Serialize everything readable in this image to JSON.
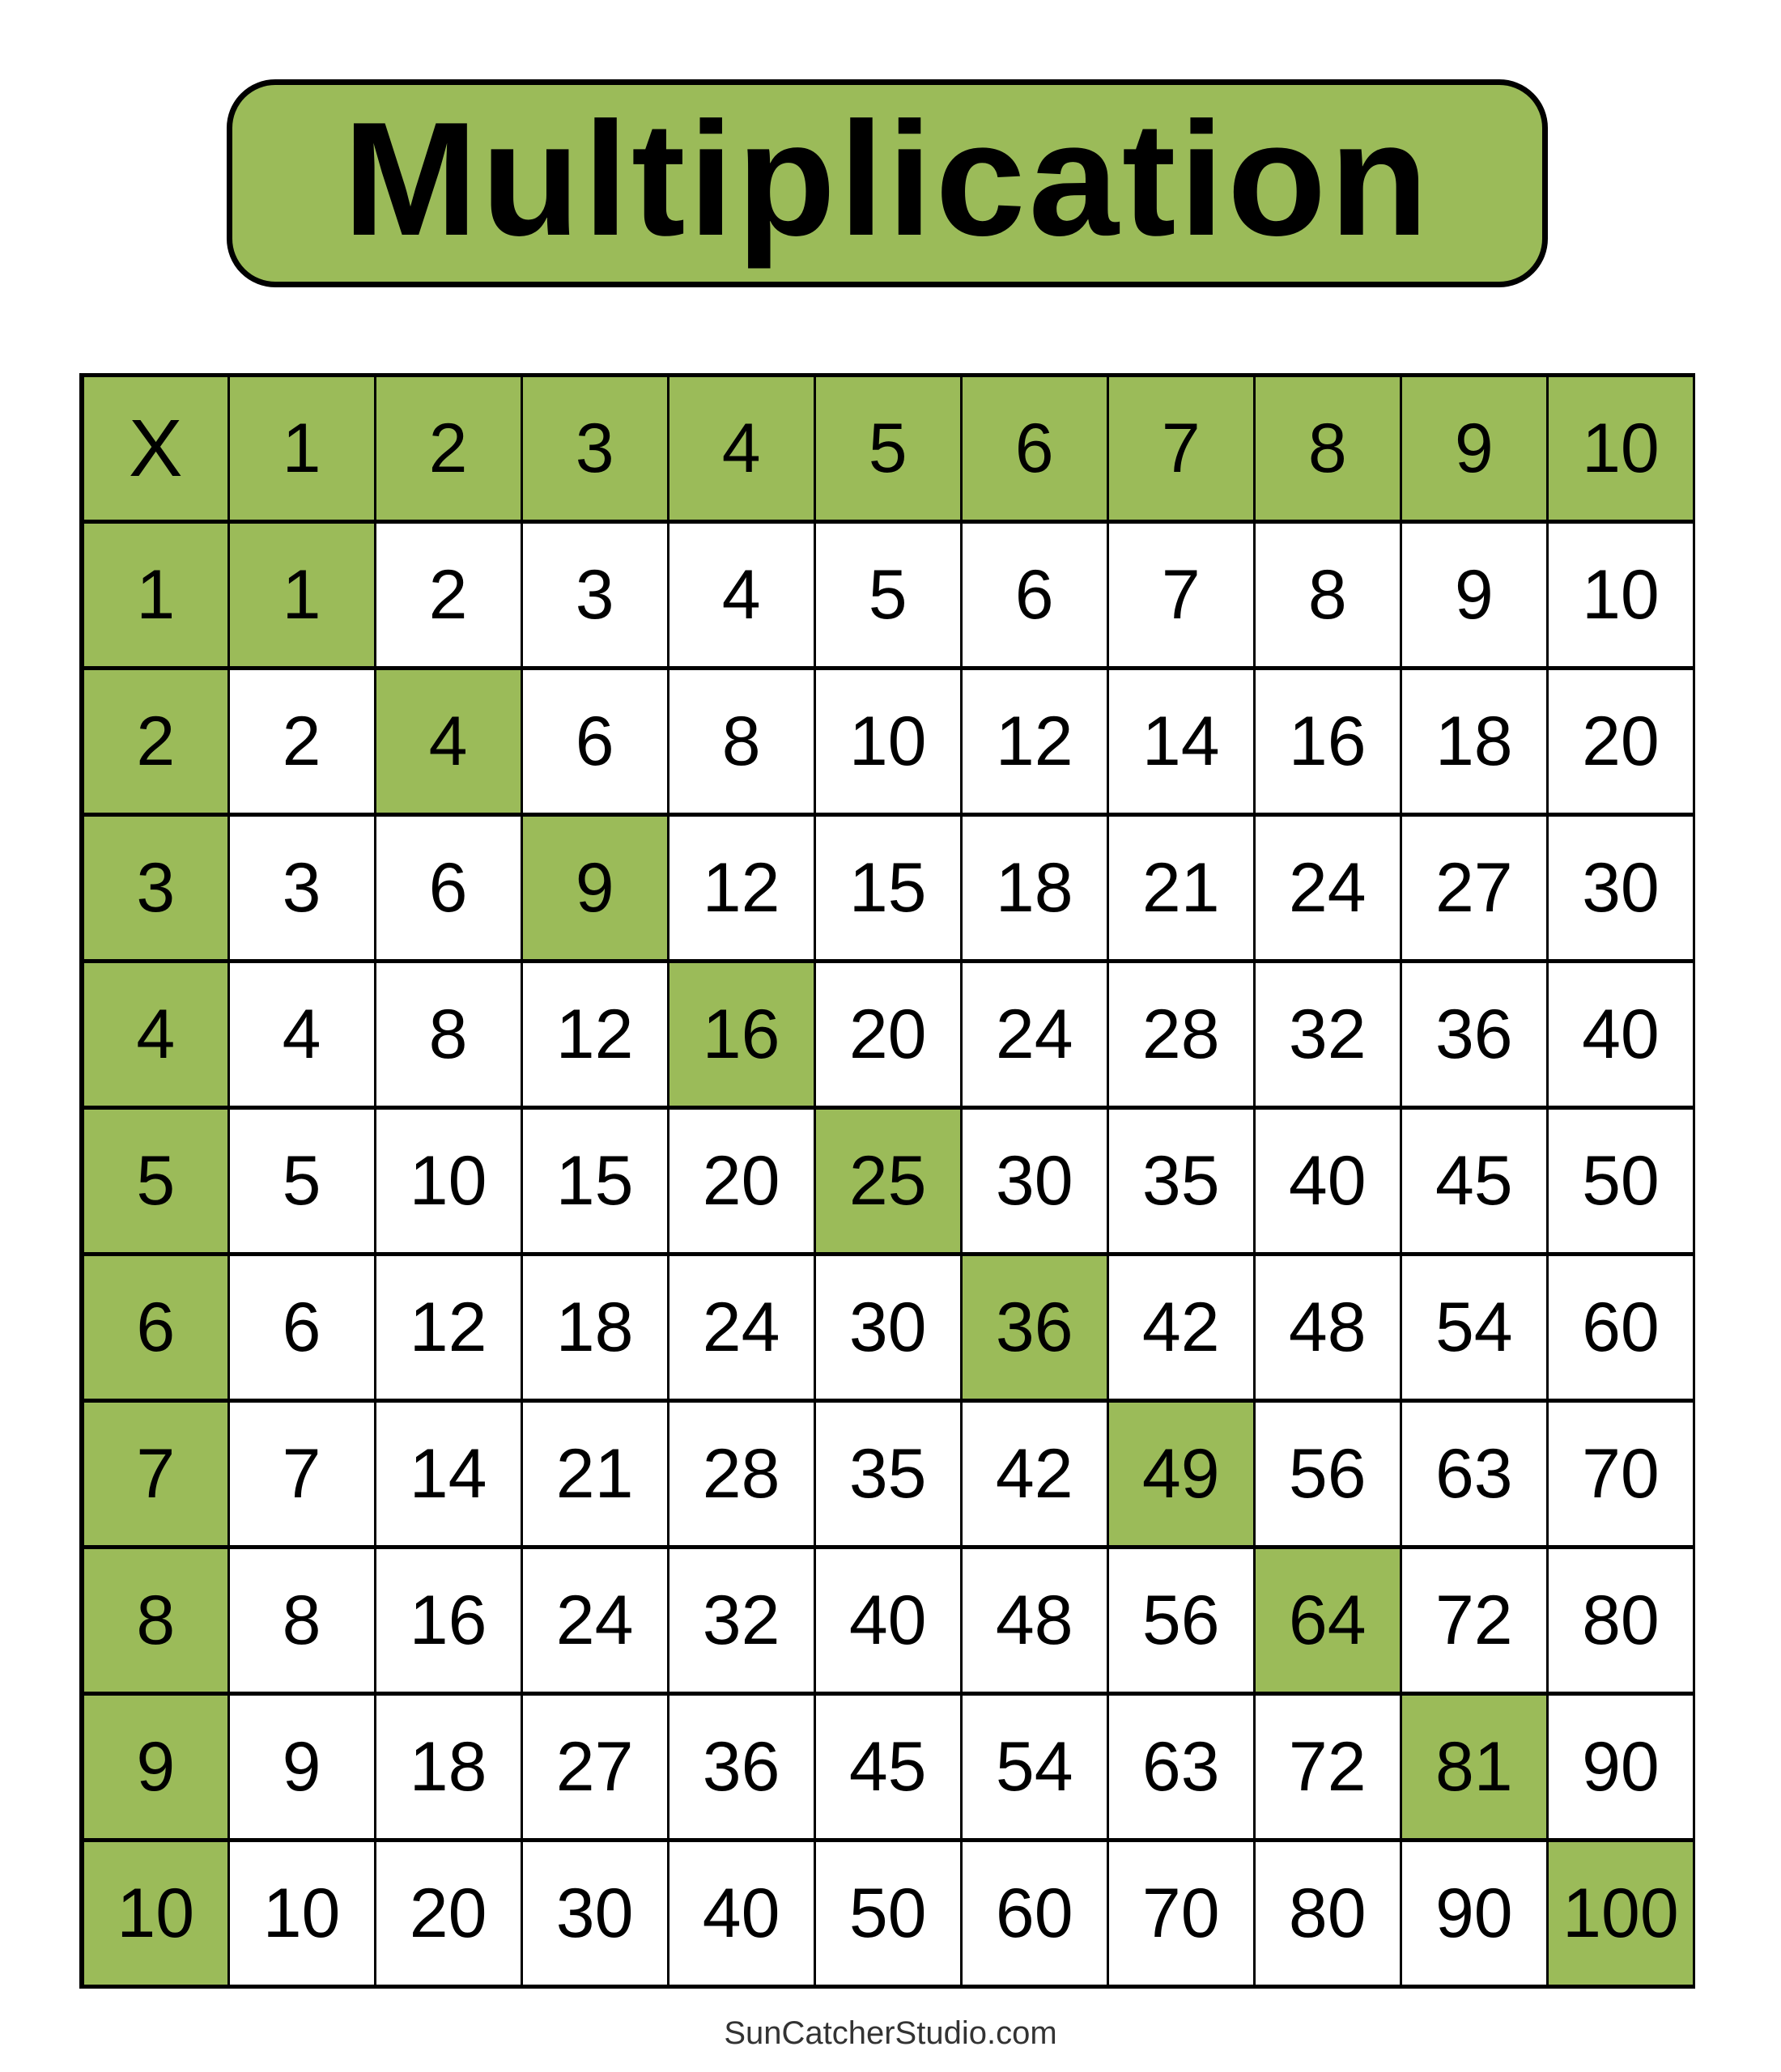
{
  "title": "Multiplication",
  "accent_color": "#9BBB59",
  "table": {
    "corner": "X",
    "column_headers": [
      "1",
      "2",
      "3",
      "4",
      "5",
      "6",
      "7",
      "8",
      "9",
      "10"
    ],
    "rows": [
      {
        "header": "1",
        "values": [
          "1",
          "2",
          "3",
          "4",
          "5",
          "6",
          "7",
          "8",
          "9",
          "10"
        ]
      },
      {
        "header": "2",
        "values": [
          "2",
          "4",
          "6",
          "8",
          "10",
          "12",
          "14",
          "16",
          "18",
          "20"
        ]
      },
      {
        "header": "3",
        "values": [
          "3",
          "6",
          "9",
          "12",
          "15",
          "18",
          "21",
          "24",
          "27",
          "30"
        ]
      },
      {
        "header": "4",
        "values": [
          "4",
          "8",
          "12",
          "16",
          "20",
          "24",
          "28",
          "32",
          "36",
          "40"
        ]
      },
      {
        "header": "5",
        "values": [
          "5",
          "10",
          "15",
          "20",
          "25",
          "30",
          "35",
          "40",
          "45",
          "50"
        ]
      },
      {
        "header": "6",
        "values": [
          "6",
          "12",
          "18",
          "24",
          "30",
          "36",
          "42",
          "48",
          "54",
          "60"
        ]
      },
      {
        "header": "7",
        "values": [
          "7",
          "14",
          "21",
          "28",
          "35",
          "42",
          "49",
          "56",
          "63",
          "70"
        ]
      },
      {
        "header": "8",
        "values": [
          "8",
          "16",
          "24",
          "32",
          "40",
          "48",
          "56",
          "64",
          "72",
          "80"
        ]
      },
      {
        "header": "9",
        "values": [
          "9",
          "18",
          "27",
          "36",
          "45",
          "54",
          "63",
          "72",
          "81",
          "90"
        ]
      },
      {
        "header": "10",
        "values": [
          "10",
          "20",
          "30",
          "40",
          "50",
          "60",
          "70",
          "80",
          "90",
          "100"
        ]
      }
    ]
  },
  "footer": "SunCatcherStudio.com"
}
